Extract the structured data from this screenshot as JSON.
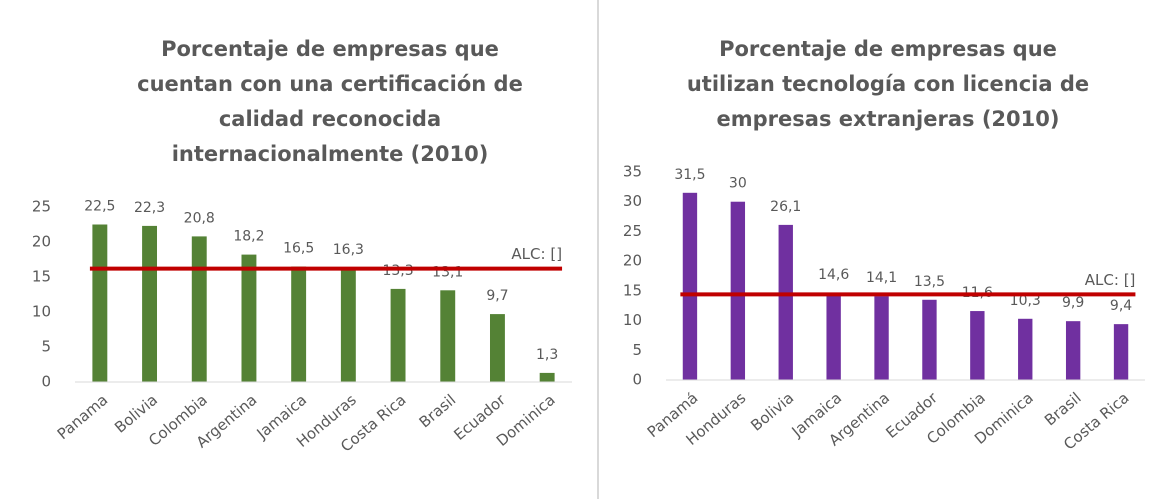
{
  "chart_data": [
    {
      "type": "bar",
      "title": [
        "Porcentaje de empresas que",
        "cuentan con una certificación de",
        "calidad reconocida",
        "internacionalmente (2010)"
      ],
      "categories": [
        "Panama",
        "Bolivia",
        "Colombia",
        "Argentina",
        "Jamaica",
        "Honduras",
        "Costa Rica",
        "Brasil",
        "Ecuador",
        "Dominica"
      ],
      "values": [
        22.5,
        22.3,
        20.8,
        18.2,
        16.5,
        16.3,
        13.3,
        13.1,
        9.7,
        1.3
      ],
      "value_labels": [
        "22,5",
        "22,3",
        "20,8",
        "18,2",
        "16,5",
        "16,3",
        "13,3",
        "13,1",
        "9,7",
        "1,3"
      ],
      "color": "#548235",
      "ylim": [
        0,
        25
      ],
      "yticks": [
        0,
        5,
        10,
        15,
        20,
        25
      ],
      "reference_line": {
        "value": 16.2,
        "label": "ALC: []",
        "color": "#c00000"
      }
    },
    {
      "type": "bar",
      "title": [
        "Porcentaje de empresas que",
        "utilizan tecnología con licencia de",
        "empresas extranjeras (2010)"
      ],
      "categories": [
        "Panamá",
        "Honduras",
        "Bolivia",
        "Jamaica",
        "Argentina",
        "Ecuador",
        "Colombia",
        "Dominica",
        "Brasil",
        "Costa Rica"
      ],
      "values": [
        31.5,
        30,
        26.1,
        14.6,
        14.1,
        13.5,
        11.6,
        10.3,
        9.9,
        9.4
      ],
      "value_labels": [
        "31,5",
        "30",
        "26,1",
        "14,6",
        "14,1",
        "13,5",
        "11,6",
        "10,3",
        "9,9",
        "9,4"
      ],
      "color": "#7030a0",
      "ylim": [
        0,
        35
      ],
      "yticks": [
        0,
        5,
        10,
        15,
        20,
        25,
        30,
        35
      ],
      "reference_line": {
        "value": 14.4,
        "label": "ALC: []",
        "color": "#c00000"
      }
    }
  ]
}
